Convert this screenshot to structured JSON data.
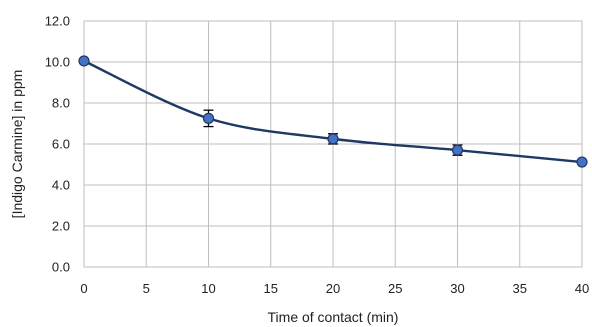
{
  "chart_data": {
    "type": "scatter",
    "xlabel": "Time of contact (min)",
    "ylabel": "[Indigo Carmine] in ppm",
    "xlim": [
      0,
      40
    ],
    "ylim": [
      0,
      12
    ],
    "x_ticks": [
      0,
      5,
      10,
      15,
      20,
      25,
      30,
      35,
      40
    ],
    "x_tick_labels": [
      "0",
      "5",
      "10",
      "15",
      "20",
      "25",
      "30",
      "35",
      "40"
    ],
    "y_ticks": [
      0,
      2,
      4,
      6,
      8,
      10,
      12
    ],
    "y_tick_labels": [
      "0.0",
      "2.0",
      "4.0",
      "6.0",
      "8.0",
      "10.0",
      "12.0"
    ],
    "grid": true,
    "smoothed_line": true,
    "series": [
      {
        "color": "#1f3864",
        "marker_color": "#4472c4",
        "points": [
          {
            "x": 0,
            "y": 10.05,
            "err": 0
          },
          {
            "x": 10,
            "y": 7.25,
            "err": 0.4
          },
          {
            "x": 20,
            "y": 6.25,
            "err": 0.25
          },
          {
            "x": 30,
            "y": 5.7,
            "err": 0.25
          },
          {
            "x": 40,
            "y": 5.12,
            "err": 0
          }
        ]
      }
    ]
  }
}
